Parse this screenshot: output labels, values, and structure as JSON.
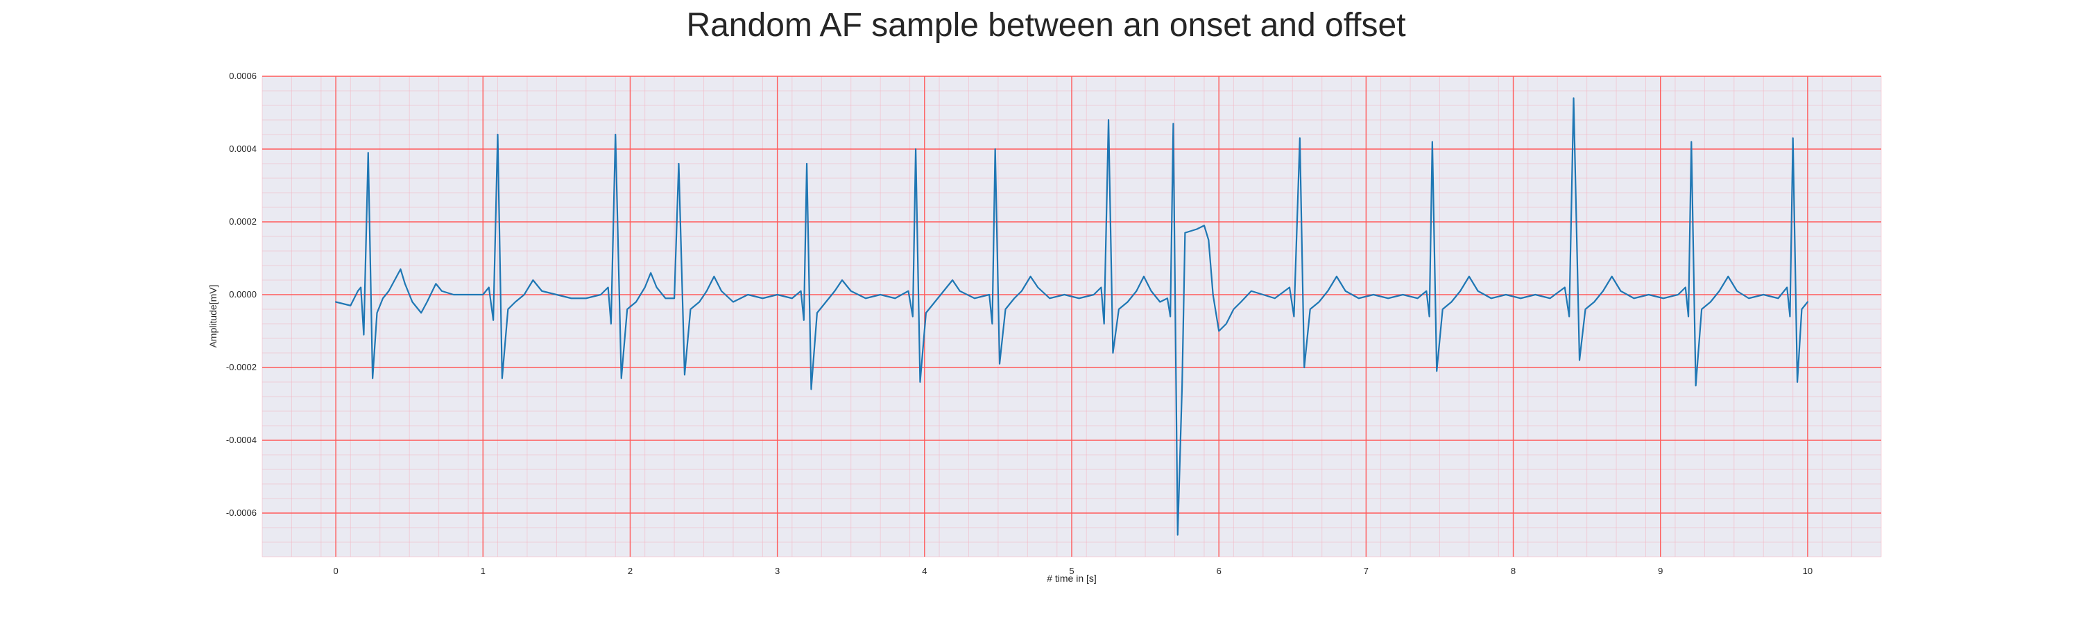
{
  "chart_data": {
    "type": "line",
    "title": "Random AF sample between an onset and offset",
    "xlabel": "# time in [s]",
    "ylabel": "Amplitude[mV]",
    "xlim": [
      -0.5,
      10.5
    ],
    "ylim": [
      -0.00072,
      0.0006
    ],
    "x_ticks": [
      0,
      1,
      2,
      3,
      4,
      5,
      6,
      7,
      8,
      9,
      10
    ],
    "x_tick_labels": [
      "0",
      "1",
      "2",
      "3",
      "4",
      "5",
      "6",
      "7",
      "8",
      "9",
      "10"
    ],
    "y_ticks": [
      -0.0006,
      -0.0004,
      -0.0002,
      0.0,
      0.0002,
      0.0004,
      0.0006
    ],
    "y_tick_labels": [
      "-0.0006",
      "-0.0004",
      "-0.0002",
      "0.0000",
      "0.0002",
      "0.0004",
      "0.0006"
    ],
    "grid": true,
    "legend": "none",
    "colors": {
      "line": "#1f77b4",
      "plot_background": "#eaeaf2",
      "major_grid": "#ff5a5a",
      "minor_grid": "#f4b6c4"
    },
    "series": [
      {
        "points": [
          [
            0.0,
            -2e-05
          ],
          [
            0.05,
            -2.5e-05
          ],
          [
            0.1,
            -3e-05
          ],
          [
            0.15,
            1e-05
          ],
          [
            0.17,
            2e-05
          ],
          [
            0.19,
            -0.00011
          ],
          [
            0.22,
            0.00039
          ],
          [
            0.25,
            -0.00023
          ],
          [
            0.28,
            -5e-05
          ],
          [
            0.32,
            -1e-05
          ],
          [
            0.36,
            1e-05
          ],
          [
            0.4,
            4e-05
          ],
          [
            0.44,
            7e-05
          ],
          [
            0.47,
            3e-05
          ],
          [
            0.52,
            -2e-05
          ],
          [
            0.58,
            -5e-05
          ],
          [
            0.62,
            -2e-05
          ],
          [
            0.68,
            3e-05
          ],
          [
            0.72,
            1e-05
          ],
          [
            0.8,
            0.0
          ],
          [
            0.9,
            0.0
          ],
          [
            1.0,
            0.0
          ],
          [
            1.04,
            2e-05
          ],
          [
            1.07,
            -7e-05
          ],
          [
            1.1,
            0.00044
          ],
          [
            1.13,
            -0.00023
          ],
          [
            1.17,
            -4e-05
          ],
          [
            1.22,
            -2e-05
          ],
          [
            1.28,
            0.0
          ],
          [
            1.34,
            4e-05
          ],
          [
            1.4,
            1e-05
          ],
          [
            1.5,
            0.0
          ],
          [
            1.6,
            -1e-05
          ],
          [
            1.7,
            -1e-05
          ],
          [
            1.8,
            0.0
          ],
          [
            1.85,
            2e-05
          ],
          [
            1.87,
            -8e-05
          ],
          [
            1.9,
            0.00044
          ],
          [
            1.94,
            -0.00023
          ],
          [
            1.98,
            -4e-05
          ],
          [
            2.04,
            -2e-05
          ],
          [
            2.1,
            2e-05
          ],
          [
            2.14,
            6e-05
          ],
          [
            2.18,
            2e-05
          ],
          [
            2.24,
            -1e-05
          ],
          [
            2.3,
            -1e-05
          ],
          [
            2.33,
            0.00036
          ],
          [
            2.37,
            -0.00022
          ],
          [
            2.41,
            -4e-05
          ],
          [
            2.47,
            -2e-05
          ],
          [
            2.52,
            1e-05
          ],
          [
            2.57,
            5e-05
          ],
          [
            2.62,
            1e-05
          ],
          [
            2.7,
            -2e-05
          ],
          [
            2.8,
            0.0
          ],
          [
            2.9,
            -1e-05
          ],
          [
            3.0,
            0.0
          ],
          [
            3.1,
            -1e-05
          ],
          [
            3.16,
            1e-05
          ],
          [
            3.18,
            -7e-05
          ],
          [
            3.2,
            0.00036
          ],
          [
            3.23,
            -0.00026
          ],
          [
            3.27,
            -5e-05
          ],
          [
            3.33,
            -2e-05
          ],
          [
            3.39,
            1e-05
          ],
          [
            3.44,
            4e-05
          ],
          [
            3.5,
            1e-05
          ],
          [
            3.6,
            -1e-05
          ],
          [
            3.7,
            0.0
          ],
          [
            3.8,
            -1e-05
          ],
          [
            3.89,
            1e-05
          ],
          [
            3.92,
            -6e-05
          ],
          [
            3.94,
            0.0004
          ],
          [
            3.97,
            -0.00024
          ],
          [
            4.01,
            -5e-05
          ],
          [
            4.07,
            -2e-05
          ],
          [
            4.13,
            1e-05
          ],
          [
            4.19,
            4e-05
          ],
          [
            4.24,
            1e-05
          ],
          [
            4.34,
            -1e-05
          ],
          [
            4.44,
            0.0
          ],
          [
            4.46,
            -8e-05
          ],
          [
            4.48,
            0.0004
          ],
          [
            4.51,
            -0.00019
          ],
          [
            4.55,
            -4e-05
          ],
          [
            4.61,
            -1e-05
          ],
          [
            4.66,
            1e-05
          ],
          [
            4.72,
            5e-05
          ],
          [
            4.77,
            2e-05
          ],
          [
            4.85,
            -1e-05
          ],
          [
            4.95,
            0.0
          ],
          [
            5.05,
            -1e-05
          ],
          [
            5.15,
            0.0
          ],
          [
            5.2,
            2e-05
          ],
          [
            5.22,
            -8e-05
          ],
          [
            5.25,
            0.00048
          ],
          [
            5.28,
            -0.00016
          ],
          [
            5.32,
            -4e-05
          ],
          [
            5.38,
            -2e-05
          ],
          [
            5.44,
            1e-05
          ],
          [
            5.49,
            5e-05
          ],
          [
            5.54,
            1e-05
          ],
          [
            5.6,
            -2e-05
          ],
          [
            5.65,
            -1e-05
          ],
          [
            5.67,
            -6e-05
          ],
          [
            5.69,
            0.00047
          ],
          [
            5.72,
            -0.00066
          ],
          [
            5.75,
            -0.00025
          ],
          [
            5.77,
            0.00017
          ],
          [
            5.85,
            0.00018
          ],
          [
            5.9,
            0.00019
          ],
          [
            5.93,
            0.00015
          ],
          [
            5.96,
            0.0
          ],
          [
            6.0,
            -0.0001
          ],
          [
            6.05,
            -8e-05
          ],
          [
            6.1,
            -4e-05
          ],
          [
            6.15,
            -2e-05
          ],
          [
            6.22,
            1e-05
          ],
          [
            6.3,
            0.0
          ],
          [
            6.38,
            -1e-05
          ],
          [
            6.48,
            2e-05
          ],
          [
            6.51,
            -6e-05
          ],
          [
            6.55,
            0.00043
          ],
          [
            6.58,
            -0.0002
          ],
          [
            6.62,
            -4e-05
          ],
          [
            6.68,
            -2e-05
          ],
          [
            6.74,
            1e-05
          ],
          [
            6.8,
            5e-05
          ],
          [
            6.86,
            1e-05
          ],
          [
            6.95,
            -1e-05
          ],
          [
            7.05,
            0.0
          ],
          [
            7.15,
            -1e-05
          ],
          [
            7.25,
            0.0
          ],
          [
            7.35,
            -1e-05
          ],
          [
            7.41,
            1e-05
          ],
          [
            7.43,
            -6e-05
          ],
          [
            7.45,
            0.00042
          ],
          [
            7.48,
            -0.00021
          ],
          [
            7.52,
            -4e-05
          ],
          [
            7.58,
            -2e-05
          ],
          [
            7.64,
            1e-05
          ],
          [
            7.7,
            5e-05
          ],
          [
            7.76,
            1e-05
          ],
          [
            7.85,
            -1e-05
          ],
          [
            7.95,
            0.0
          ],
          [
            8.05,
            -1e-05
          ],
          [
            8.15,
            0.0
          ],
          [
            8.25,
            -1e-05
          ],
          [
            8.35,
            2e-05
          ],
          [
            8.38,
            -6e-05
          ],
          [
            8.41,
            0.00054
          ],
          [
            8.45,
            -0.00018
          ],
          [
            8.49,
            -4e-05
          ],
          [
            8.55,
            -2e-05
          ],
          [
            8.61,
            1e-05
          ],
          [
            8.67,
            5e-05
          ],
          [
            8.73,
            1e-05
          ],
          [
            8.82,
            -1e-05
          ],
          [
            8.92,
            0.0
          ],
          [
            9.02,
            -1e-05
          ],
          [
            9.12,
            0.0
          ],
          [
            9.17,
            2e-05
          ],
          [
            9.19,
            -6e-05
          ],
          [
            9.21,
            0.00042
          ],
          [
            9.24,
            -0.00025
          ],
          [
            9.28,
            -4e-05
          ],
          [
            9.34,
            -2e-05
          ],
          [
            9.4,
            1e-05
          ],
          [
            9.46,
            5e-05
          ],
          [
            9.52,
            1e-05
          ],
          [
            9.6,
            -1e-05
          ],
          [
            9.7,
            0.0
          ],
          [
            9.8,
            -1e-05
          ],
          [
            9.86,
            2e-05
          ],
          [
            9.88,
            -6e-05
          ],
          [
            9.9,
            0.00043
          ],
          [
            9.93,
            -0.00024
          ],
          [
            9.96,
            -4e-05
          ],
          [
            10.0,
            -2e-05
          ]
        ]
      }
    ]
  }
}
